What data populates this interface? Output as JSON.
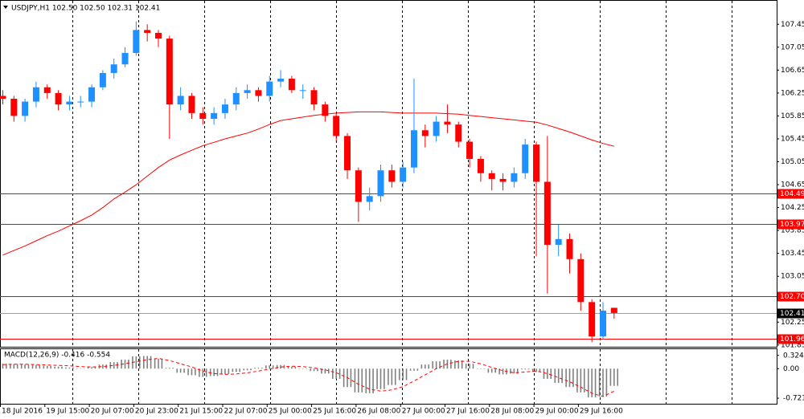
{
  "chart_data": {
    "type": "candlestick",
    "header": "USDJPY,H1  102.50 102.50 102.31 102.41",
    "x": [
      1,
      5,
      9,
      13,
      17,
      21,
      25,
      29,
      33,
      37,
      41,
      45,
      49,
      53,
      57,
      61,
      65,
      69,
      73,
      77,
      81,
      85,
      89,
      93,
      97,
      101,
      105,
      109,
      113,
      117,
      121,
      125,
      129,
      133,
      137,
      141,
      145,
      149,
      153,
      157,
      161,
      165,
      169,
      173,
      177,
      181,
      185,
      189,
      193,
      197,
      201,
      205,
      209,
      213,
      217,
      221
    ],
    "open": [
      106.2,
      106.15,
      105.85,
      106.1,
      106.35,
      106.25,
      106.05,
      106.1,
      106.1,
      106.35,
      106.6,
      106.75,
      106.95,
      107.35,
      107.3,
      107.2,
      106.05,
      106.2,
      105.9,
      105.8,
      105.9,
      106.05,
      106.25,
      106.3,
      106.2,
      106.45,
      106.5,
      106.3,
      106.3,
      106.05,
      105.85,
      105.5,
      104.9,
      104.35,
      104.45,
      104.9,
      104.7,
      104.95,
      105.6,
      105.5,
      105.75,
      105.7,
      105.4,
      105.1,
      104.85,
      104.75,
      104.7,
      104.85,
      105.35,
      104.7,
      103.6,
      103.7,
      103.35,
      102.6,
      102.0,
      102.5
    ],
    "high": [
      106.3,
      106.2,
      106.15,
      106.45,
      106.4,
      106.3,
      106.2,
      106.2,
      106.4,
      106.65,
      106.85,
      107.05,
      107.5,
      107.45,
      107.35,
      107.25,
      106.35,
      106.25,
      106.0,
      106.0,
      106.15,
      106.35,
      106.4,
      106.35,
      106.55,
      106.65,
      106.55,
      106.4,
      106.35,
      106.1,
      105.9,
      105.55,
      104.95,
      104.6,
      105.0,
      105.0,
      105.05,
      106.5,
      105.7,
      105.85,
      106.05,
      105.75,
      105.45,
      105.15,
      104.9,
      104.85,
      104.95,
      105.45,
      105.4,
      105.5,
      103.95,
      103.8,
      103.45,
      102.65,
      102.6,
      102.5
    ],
    "low": [
      106.05,
      105.75,
      105.75,
      106.0,
      106.15,
      105.95,
      105.95,
      106.0,
      106.0,
      106.3,
      106.5,
      106.7,
      106.9,
      107.15,
      107.05,
      105.45,
      105.95,
      105.8,
      105.7,
      105.7,
      105.8,
      105.95,
      106.15,
      106.1,
      106.1,
      106.35,
      106.25,
      106.15,
      105.95,
      105.75,
      105.4,
      104.75,
      104.0,
      104.2,
      104.35,
      104.6,
      104.6,
      104.85,
      105.3,
      105.4,
      105.55,
      105.3,
      104.95,
      104.7,
      104.55,
      104.55,
      104.6,
      104.75,
      103.4,
      102.75,
      103.4,
      103.1,
      102.45,
      101.9,
      101.95,
      102.31
    ],
    "close": [
      106.15,
      105.85,
      106.1,
      106.35,
      106.25,
      106.05,
      106.1,
      106.1,
      106.35,
      106.6,
      106.75,
      106.95,
      107.35,
      107.3,
      107.2,
      106.05,
      106.2,
      105.9,
      105.8,
      105.9,
      106.05,
      106.25,
      106.3,
      106.2,
      106.45,
      106.5,
      106.3,
      106.3,
      106.05,
      105.85,
      105.5,
      104.9,
      104.35,
      104.45,
      104.9,
      104.7,
      104.95,
      105.6,
      105.5,
      105.75,
      105.7,
      105.4,
      105.1,
      104.85,
      104.75,
      104.7,
      104.85,
      105.35,
      104.7,
      103.6,
      103.7,
      103.35,
      102.6,
      102.0,
      102.45,
      102.41
    ],
    "up_color": "#1e90ff",
    "down_color": "#ff0000",
    "ma": {
      "color": "#ff0000",
      "values": [
        103.42,
        103.5,
        103.58,
        103.67,
        103.76,
        103.84,
        103.93,
        104.02,
        104.12,
        104.25,
        104.4,
        104.52,
        104.65,
        104.8,
        104.95,
        105.08,
        105.17,
        105.25,
        105.33,
        105.39,
        105.45,
        105.5,
        105.55,
        105.62,
        105.7,
        105.77,
        105.8,
        105.83,
        105.86,
        105.88,
        105.9,
        105.91,
        105.92,
        105.92,
        105.92,
        105.91,
        105.9,
        105.9,
        105.9,
        105.9,
        105.89,
        105.88,
        105.86,
        105.84,
        105.82,
        105.8,
        105.78,
        105.76,
        105.74,
        105.69,
        105.63,
        105.57,
        105.5,
        105.43,
        105.37,
        105.32
      ]
    },
    "xlim": [
      0,
      279.5
    ],
    "xticks": [
      {
        "value": 0,
        "label": "18 Jul 2016"
      },
      {
        "value": 16,
        "label": "19 Jul 15:00"
      },
      {
        "value": 32,
        "label": "20 Jul 07:00"
      },
      {
        "value": 48,
        "label": "20 Jul 23:00"
      },
      {
        "value": 64,
        "label": "21 Jul 15:00"
      },
      {
        "value": 80,
        "label": "22 Jul 07:00"
      },
      {
        "value": 96,
        "label": "25 Jul 00:00"
      },
      {
        "value": 112,
        "label": "25 Jul 16:00"
      },
      {
        "value": 128,
        "label": "26 Jul 08:00"
      },
      {
        "value": 144,
        "label": "27 Jul 00:00"
      },
      {
        "value": 160,
        "label": "27 Jul 16:00"
      },
      {
        "value": 176,
        "label": "28 Jul 08:00"
      },
      {
        "value": 192,
        "label": "29 Jul 00:00"
      },
      {
        "value": 208,
        "label": "29 Jul 16:00"
      }
    ],
    "ylim": [
      101.82,
      107.86
    ],
    "yticks": [
      107.45,
      107.05,
      106.65,
      106.25,
      105.85,
      105.45,
      105.05,
      104.65,
      104.25,
      103.85,
      103.45,
      103.05,
      102.65,
      102.25,
      101.85
    ],
    "levels": [
      104.49,
      103.97,
      {
        "value": 102.7,
        "label": "102.70"
      },
      101.96
    ],
    "level_color": "#ff0000",
    "current_price": 102.41,
    "macd": {
      "label": "MACD(12,26,9) -0.416 -0.554",
      "hist_color": "#808080",
      "signal_color": "#ff0000",
      "histogram": [
        0.12,
        0.11,
        0.1,
        0.09,
        0.07,
        0.05,
        0.03,
        0.01,
        0.04,
        0.1,
        0.16,
        0.22,
        0.3,
        0.31,
        0.24,
        0.02,
        -0.1,
        -0.16,
        -0.2,
        -0.18,
        -0.13,
        -0.08,
        -0.04,
        0.02,
        0.08,
        0.09,
        0.05,
        0.0,
        -0.06,
        -0.12,
        -0.25,
        -0.45,
        -0.58,
        -0.6,
        -0.5,
        -0.4,
        -0.28,
        -0.05,
        0.1,
        0.18,
        0.22,
        0.2,
        0.12,
        0.0,
        -0.1,
        -0.14,
        -0.12,
        -0.02,
        -0.08,
        -0.25,
        -0.35,
        -0.45,
        -0.58,
        -0.7,
        -0.68,
        -0.42
      ],
      "signal": [
        0.1,
        0.11,
        0.11,
        0.1,
        0.09,
        0.08,
        0.07,
        0.05,
        0.04,
        0.05,
        0.08,
        0.12,
        0.17,
        0.22,
        0.25,
        0.2,
        0.12,
        0.04,
        -0.06,
        -0.12,
        -0.14,
        -0.13,
        -0.1,
        -0.06,
        -0.01,
        0.04,
        0.06,
        0.05,
        0.02,
        -0.03,
        -0.1,
        -0.22,
        -0.38,
        -0.5,
        -0.55,
        -0.52,
        -0.44,
        -0.3,
        -0.15,
        0.0,
        0.12,
        0.18,
        0.18,
        0.12,
        0.03,
        -0.05,
        -0.1,
        -0.08,
        -0.06,
        -0.12,
        -0.22,
        -0.32,
        -0.45,
        -0.6,
        -0.68,
        -0.55
      ],
      "ylim": [
        -0.857,
        0.476
      ],
      "yticks": [
        0.324,
        {
          "value": 0,
          "label": "0.00"
        },
        -0.721
      ]
    }
  }
}
